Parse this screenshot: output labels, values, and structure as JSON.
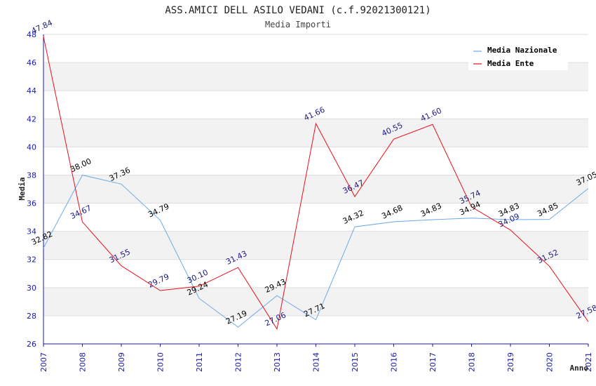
{
  "chart_data": {
    "type": "line",
    "title": "ASS.AMICI DELL ASILO VEDANI (c.f.92021300121)",
    "subtitle": "Media Importi",
    "xlabel": "Anno",
    "ylabel": "Media",
    "ylim": [
      26,
      48
    ],
    "ytick_step": 2,
    "x": [
      2007,
      2008,
      2009,
      2010,
      2011,
      2012,
      2013,
      2014,
      2015,
      2016,
      2017,
      2018,
      2019,
      2020,
      2021
    ],
    "series": [
      {
        "name": "Media Nazionale",
        "color": "#6aaae8",
        "label_color": "#000000",
        "values": [
          32.82,
          38.0,
          37.36,
          34.79,
          29.24,
          27.19,
          29.43,
          27.71,
          34.32,
          34.68,
          34.83,
          34.94,
          34.83,
          34.85,
          37.05
        ]
      },
      {
        "name": "Media Ente",
        "color": "#e8101a",
        "label_color": "#1a1a80",
        "values": [
          47.84,
          34.67,
          31.55,
          29.79,
          30.1,
          31.43,
          27.06,
          41.66,
          36.47,
          40.55,
          41.6,
          35.74,
          34.09,
          31.52,
          27.58
        ]
      }
    ],
    "legend_position": "top-right",
    "grid": "horizontal bands"
  }
}
